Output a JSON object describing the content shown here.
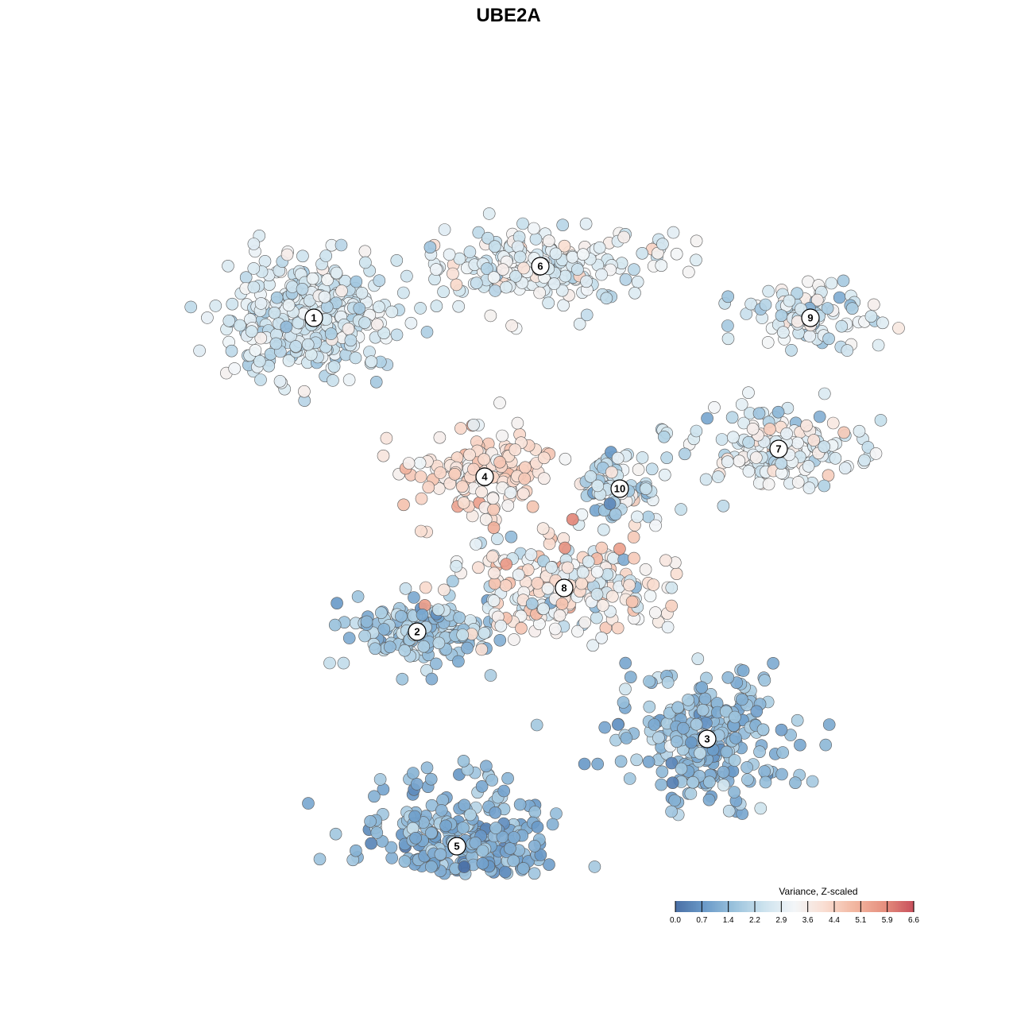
{
  "chart_data": {
    "type": "scatter",
    "title": "UBE2A",
    "xlabel": "",
    "ylabel": "",
    "grid": false,
    "axes_visible": false,
    "color_scale": {
      "title": "Variance, Z-scaled",
      "min": 0.0,
      "max": 6.6,
      "ticks": [
        "0.0",
        "0.7",
        "1.4",
        "2.2",
        "2.9",
        "3.6",
        "4.4",
        "5.1",
        "5.9",
        "6.6"
      ],
      "colors": [
        "#4a6fa5",
        "#6b9bc9",
        "#9cc3dd",
        "#cde3ee",
        "#f3f6f8",
        "#f9ded2",
        "#f2b7a1",
        "#e6907f",
        "#c8505c"
      ],
      "legend_position": "bottom-right"
    },
    "clusters": [
      {
        "label": "1",
        "center": [
          -2.45,
          2.2
        ],
        "spread": [
          1.05,
          0.72
        ],
        "count": 340,
        "mean": 2.6,
        "sd": 0.55
      },
      {
        "label": "2",
        "center": [
          -1.15,
          -1.75
        ],
        "spread": [
          0.85,
          0.4
        ],
        "count": 150,
        "mean": 1.8,
        "sd": 0.55
      },
      {
        "label": "3",
        "center": [
          2.5,
          -3.1
        ],
        "spread": [
          0.95,
          0.75
        ],
        "count": 250,
        "mean": 1.5,
        "sd": 0.45
      },
      {
        "label": "4",
        "center": [
          -0.3,
          0.2
        ],
        "spread": [
          0.8,
          0.52
        ],
        "count": 140,
        "mean": 4.0,
        "sd": 0.55
      },
      {
        "label": "5",
        "center": [
          -0.65,
          -4.45
        ],
        "spread": [
          1.0,
          0.85
        ],
        "count": 330,
        "mean": 1.3,
        "sd": 0.45
      },
      {
        "label": "6",
        "center": [
          0.4,
          2.85
        ],
        "spread": [
          1.35,
          0.45
        ],
        "count": 230,
        "mean": 2.9,
        "sd": 0.55
      },
      {
        "label": "7",
        "center": [
          3.4,
          0.55
        ],
        "spread": [
          1.05,
          0.42
        ],
        "count": 170,
        "mean": 2.9,
        "sd": 0.65
      },
      {
        "label": "8",
        "center": [
          0.7,
          -1.2
        ],
        "spread": [
          1.15,
          0.6
        ],
        "count": 230,
        "mean": 3.6,
        "sd": 0.95
      },
      {
        "label": "9",
        "center": [
          3.8,
          2.2
        ],
        "spread": [
          0.85,
          0.38
        ],
        "count": 100,
        "mean": 2.6,
        "sd": 0.6
      },
      {
        "label": "10",
        "center": [
          1.4,
          0.05
        ],
        "spread": [
          0.45,
          0.4
        ],
        "count": 90,
        "mean": 2.3,
        "sd": 0.8
      }
    ],
    "value_unit": "Variance, Z-scaled"
  }
}
